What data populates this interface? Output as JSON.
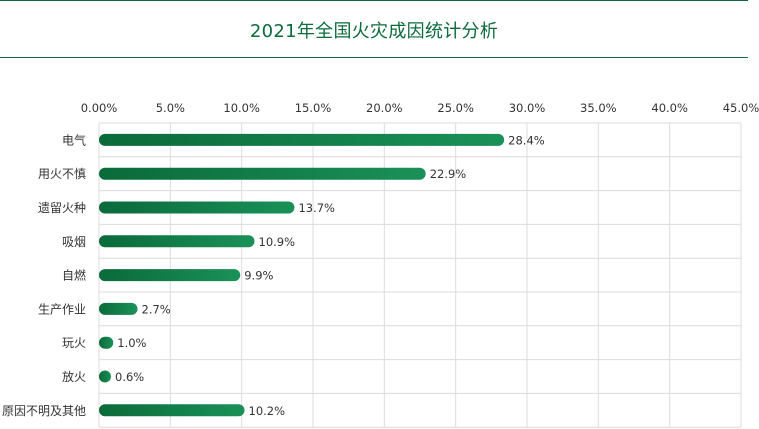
{
  "title": "2021年全国火灾成因统计分析",
  "colors": {
    "accent": "#0c6b3c",
    "bar_start": "#0a6a3a",
    "bar_end": "#1a9158",
    "grid": "#dcdcdc",
    "text": "#333333"
  },
  "chart_data": {
    "type": "bar",
    "orientation": "horizontal",
    "title": "2021年全国火灾成因统计分析",
    "categories": [
      "电气",
      "用火不慎",
      "遗留火种",
      "吸烟",
      "自燃",
      "生产作业",
      "玩火",
      "放火",
      "原因不明及其他"
    ],
    "values": [
      28.4,
      22.9,
      13.7,
      10.9,
      9.9,
      2.7,
      1.0,
      0.6,
      10.2
    ],
    "value_labels": [
      "28.4%",
      "22.9%",
      "13.7%",
      "10.9%",
      "9.9%",
      "2.7%",
      "1.0%",
      "0.6%",
      "10.2%"
    ],
    "xlim": [
      0,
      45
    ],
    "xticks": [
      0,
      5,
      10,
      15,
      20,
      25,
      30,
      35,
      40,
      45
    ],
    "xtick_labels": [
      "0.00%",
      "5.0%",
      "10.0%",
      "15.0%",
      "20.0%",
      "25.0%",
      "30.0%",
      "35.0%",
      "40.0%",
      "45.0%"
    ],
    "x_axis_position": "top",
    "grid": true,
    "xlabel": "",
    "ylabel": ""
  }
}
